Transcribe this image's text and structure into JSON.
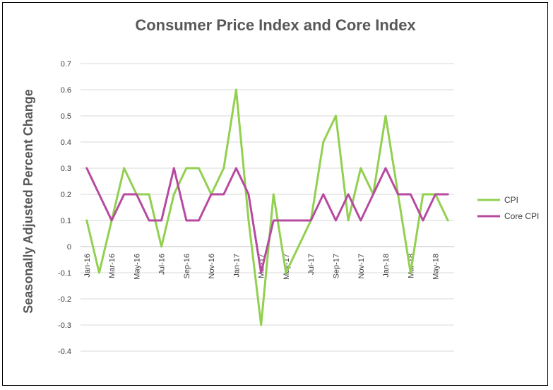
{
  "chart_data": {
    "type": "line",
    "title": "Consumer Price Index and Core Index",
    "xlabel": "",
    "ylabel": "Seasonally Adjusted Percent Change",
    "ylim": [
      -0.4,
      0.7
    ],
    "yticks": [
      "0.7",
      "0.6",
      "0.5",
      "0.4",
      "0.3",
      "0.2",
      "0.1",
      "0",
      "-0.1",
      "-0.2",
      "-0.3",
      "-0.4"
    ],
    "categories": [
      "Jan-16",
      "Feb-16",
      "Mar-16",
      "Apr-16",
      "May-16",
      "Jun-16",
      "Jul-16",
      "Aug-16",
      "Sep-16",
      "Oct-16",
      "Nov-16",
      "Dec-16",
      "Jan-17",
      "Feb-17",
      "Mar-17",
      "Apr-17",
      "May-17",
      "Jun-17",
      "Jul-17",
      "Aug-17",
      "Sep-17",
      "Oct-17",
      "Nov-17",
      "Dec-17",
      "Jan-18",
      "Feb-18",
      "Mar-18",
      "Apr-18",
      "May-18",
      "Jun-18"
    ],
    "tick_labels": [
      "Jan-16",
      "Mar-16",
      "May-16",
      "Jul-16",
      "Sep-16",
      "Nov-16",
      "Jan-17",
      "Mar-17",
      "May-17",
      "Jul-17",
      "Sep-17",
      "Nov-17",
      "Jan-18",
      "Mar-18",
      "May-18"
    ],
    "grid": true,
    "legend_position": "right",
    "series": [
      {
        "name": "CPI",
        "color": "#92d050",
        "values": [
          0.1,
          -0.1,
          0.1,
          0.3,
          0.2,
          0.2,
          0.0,
          0.2,
          0.3,
          0.3,
          0.2,
          0.3,
          0.6,
          0.1,
          -0.3,
          0.2,
          -0.1,
          0.0,
          0.1,
          0.4,
          0.5,
          0.1,
          0.3,
          0.2,
          0.5,
          0.2,
          -0.1,
          0.2,
          0.2,
          0.1
        ]
      },
      {
        "name": "Core CPI",
        "color": "#b74aa0",
        "values": [
          0.3,
          0.2,
          0.1,
          0.2,
          0.2,
          0.1,
          0.1,
          0.3,
          0.1,
          0.1,
          0.2,
          0.2,
          0.3,
          0.2,
          -0.1,
          0.1,
          0.1,
          0.1,
          0.1,
          0.2,
          0.1,
          0.2,
          0.1,
          0.2,
          0.3,
          0.2,
          0.2,
          0.1,
          0.2,
          0.2
        ]
      }
    ]
  }
}
